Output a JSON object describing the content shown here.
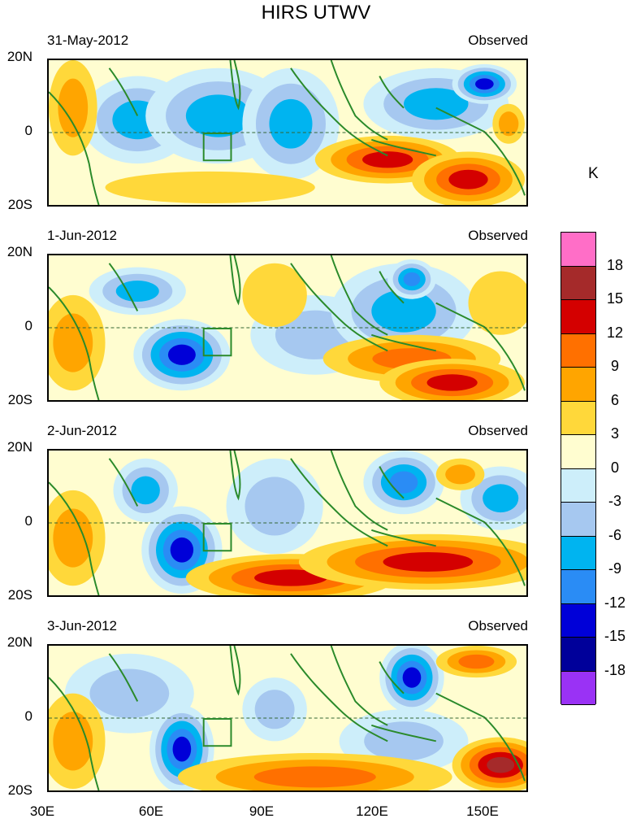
{
  "title": "HIRS UTWV",
  "unit": "K",
  "panels": [
    {
      "date": "31-May-2012",
      "label": "Observed"
    },
    {
      "date": "1-Jun-2012",
      "label": "Observed"
    },
    {
      "date": "2-Jun-2012",
      "label": "Observed"
    },
    {
      "date": "3-Jun-2012",
      "label": "Observed"
    }
  ],
  "y_labels": [
    "20N",
    "0",
    "20S"
  ],
  "x_labels": [
    "30E",
    "60E",
    "90E",
    "120E",
    "150E"
  ],
  "colorbar": {
    "labels": [
      "18",
      "15",
      "12",
      "9",
      "6",
      "3",
      "0",
      "-3",
      "-6",
      "-9",
      "-12",
      "-15",
      "-18"
    ],
    "colors": [
      "#ff6ec7",
      "#a52a2a",
      "#d40000",
      "#ff7000",
      "#ffa500",
      "#ffd83a",
      "#fffdd0",
      "#cdeefa",
      "#a6c8f0",
      "#00b4f0",
      "#2a8cf5",
      "#0000d8",
      "#00009a",
      "#9a32f5"
    ]
  },
  "map_extent": {
    "lon": [
      30,
      160
    ],
    "lat": [
      -20,
      20
    ]
  },
  "chart_data": {
    "type": "heatmap",
    "title": "HIRS UTWV",
    "unit": "K",
    "levels": [
      -18,
      -15,
      -12,
      -9,
      -6,
      -3,
      0,
      3,
      6,
      9,
      12,
      15,
      18
    ],
    "panels": [
      "31-May-2012",
      "1-Jun-2012",
      "2-Jun-2012",
      "3-Jun-2012"
    ],
    "xlabel": "",
    "ylabel": ""
  }
}
